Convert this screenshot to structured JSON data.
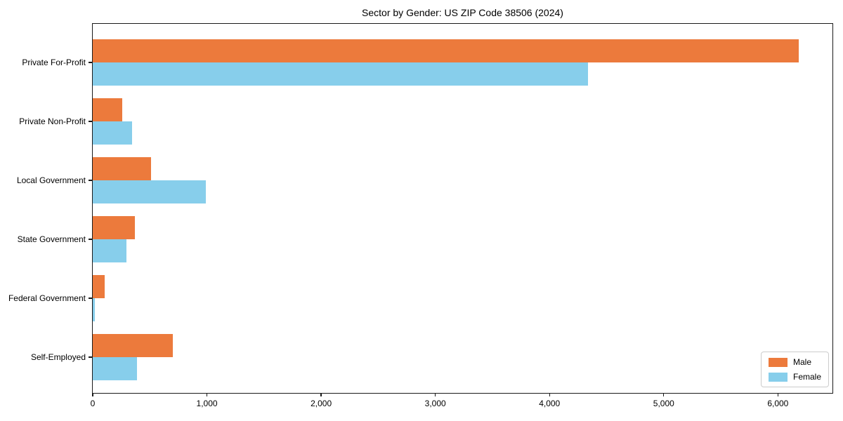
{
  "chart_data": {
    "type": "bar",
    "orientation": "horizontal",
    "title": "Sector by Gender: US ZIP Code 38506 (2024)",
    "categories": [
      "Private For-Profit",
      "Private Non-Profit",
      "Local Government",
      "State Government",
      "Federal Government",
      "Self-Employed"
    ],
    "series": [
      {
        "name": "Male",
        "color": "#EC7A3C",
        "values": [
          6180,
          260,
          510,
          370,
          105,
          700
        ]
      },
      {
        "name": "Female",
        "color": "#87CEEB",
        "values": [
          4335,
          345,
          990,
          293,
          20,
          385
        ]
      }
    ],
    "xlabel": "",
    "ylabel": "",
    "xlim": [
      0,
      6490
    ],
    "xticks": [
      0,
      1000,
      2000,
      3000,
      4000,
      5000,
      6000
    ],
    "xtick_labels": [
      "0",
      "1,000",
      "2,000",
      "3,000",
      "4,000",
      "5,000",
      "6,000"
    ],
    "grid": false,
    "legend": {
      "position": "lower right",
      "entries": [
        "Male",
        "Female"
      ]
    },
    "spine_color": "#1a1a1a",
    "background_color": "#ffffff"
  }
}
